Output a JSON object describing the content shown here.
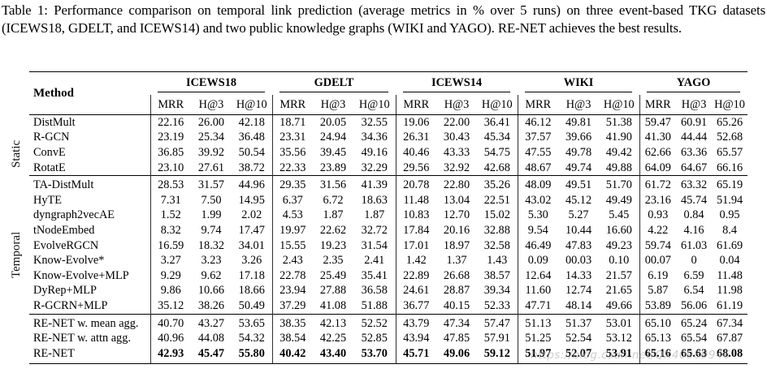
{
  "caption": "Table 1: Performance comparison on temporal link prediction (average metrics in % over 5 runs) on three event-based TKG datasets (ICEWS18, GDELT, and ICEWS14) and two public knowledge graphs (WIKI and YAGO). RE-NET achieves the best results.",
  "watermark": "https://blog.csdn.net/QX40989946",
  "table": {
    "method_header": "Method",
    "groups": [
      "ICEWS18",
      "GDELT",
      "ICEWS14",
      "WIKI",
      "YAGO"
    ],
    "metrics": [
      "MRR",
      "H@3",
      "H@10"
    ],
    "row_groups": [
      {
        "label": "Static",
        "rows": [
          {
            "method": "DistMult",
            "bold": false,
            "values": [
              "22.16",
              "26.00",
              "42.18",
              "18.71",
              "20.05",
              "32.55",
              "19.06",
              "22.00",
              "36.41",
              "46.12",
              "49.81",
              "51.38",
              "59.47",
              "60.91",
              "65.26"
            ]
          },
          {
            "method": "R-GCN",
            "bold": false,
            "values": [
              "23.19",
              "25.34",
              "36.48",
              "23.31",
              "24.94",
              "34.36",
              "26.31",
              "30.43",
              "45.34",
              "37.57",
              "39.66",
              "41.90",
              "41.30",
              "44.44",
              "52.68"
            ]
          },
          {
            "method": "ConvE",
            "bold": false,
            "values": [
              "36.85",
              "39.92",
              "50.54",
              "35.56",
              "39.45",
              "49.16",
              "40.46",
              "43.33",
              "54.75",
              "47.55",
              "49.78",
              "49.42",
              "62.66",
              "63.36",
              "65.57"
            ]
          },
          {
            "method": "RotatE",
            "bold": false,
            "values": [
              "23.10",
              "27.61",
              "38.72",
              "22.33",
              "23.89",
              "32.29",
              "29.56",
              "32.92",
              "42.68",
              "48.67",
              "49.74",
              "49.88",
              "64.09",
              "64.67",
              "66.16"
            ]
          }
        ]
      },
      {
        "label": "Temporal",
        "rows": [
          {
            "method": "TA-DistMult",
            "bold": false,
            "values": [
              "28.53",
              "31.57",
              "44.96",
              "29.35",
              "31.56",
              "41.39",
              "20.78",
              "22.80",
              "35.26",
              "48.09",
              "49.51",
              "51.70",
              "61.72",
              "63.32",
              "65.19"
            ]
          },
          {
            "method": "HyTE",
            "bold": false,
            "values": [
              "7.31",
              "7.50",
              "14.95",
              "6.37",
              "6.72",
              "18.63",
              "11.48",
              "13.04",
              "22.51",
              "43.02",
              "45.12",
              "49.49",
              "23.16",
              "45.74",
              "51.94"
            ]
          },
          {
            "method": "dyngraph2vecAE",
            "bold": false,
            "values": [
              "1.52",
              "1.99",
              "2.02",
              "4.53",
              "1.87",
              "1.87",
              "10.83",
              "12.70",
              "15.02",
              "5.30",
              "5.27",
              "5.45",
              "0.93",
              "0.84",
              "0.95"
            ]
          },
          {
            "method": "tNodeEmbed",
            "bold": false,
            "values": [
              "8.32",
              "9.74",
              "17.47",
              "19.97",
              "22.62",
              "32.72",
              "17.84",
              "20.16",
              "32.88",
              "9.54",
              "10.44",
              "16.60",
              "4.22",
              "4.16",
              "8.4"
            ]
          },
          {
            "method": "EvolveRGCN",
            "bold": false,
            "values": [
              "16.59",
              "18.32",
              "34.01",
              "15.55",
              "19.23",
              "31.54",
              "17.01",
              "18.97",
              "32.58",
              "46.49",
              "47.83",
              "49.23",
              "59.74",
              "61.03",
              "61.69"
            ]
          },
          {
            "method": "Know-Evolve*",
            "bold": false,
            "values": [
              "3.27",
              "3.23",
              "3.26",
              "2.43",
              "2.35",
              "2.41",
              "1.42",
              "1.37",
              "1.43",
              "0.09",
              "00.03",
              "0.10",
              "00.07",
              "0",
              "0.04"
            ]
          },
          {
            "method": "Know-Evolve+MLP",
            "bold": false,
            "values": [
              "9.29",
              "9.62",
              "17.18",
              "22.78",
              "25.49",
              "35.41",
              "22.89",
              "26.68",
              "38.57",
              "12.64",
              "14.33",
              "21.57",
              "6.19",
              "6.59",
              "11.48"
            ]
          },
          {
            "method": "DyRep+MLP",
            "bold": false,
            "values": [
              "9.86",
              "10.66",
              "18.66",
              "23.94",
              "27.88",
              "36.58",
              "24.61",
              "28.87",
              "39.34",
              "11.60",
              "12.74",
              "21.65",
              "5.87",
              "6.54",
              "11.98"
            ]
          },
          {
            "method": "R-GCRN+MLP",
            "bold": false,
            "values": [
              "35.12",
              "38.26",
              "50.49",
              "37.29",
              "41.08",
              "51.88",
              "36.77",
              "40.15",
              "52.33",
              "47.71",
              "48.14",
              "49.66",
              "53.89",
              "56.06",
              "61.19"
            ]
          }
        ]
      },
      {
        "label": "",
        "rows": [
          {
            "method": "RE-NET w. mean agg.",
            "bold": false,
            "values": [
              "40.70",
              "43.27",
              "53.65",
              "38.35",
              "42.13",
              "52.52",
              "43.79",
              "47.34",
              "57.47",
              "51.13",
              "51.37",
              "53.01",
              "65.10",
              "65.24",
              "67.34"
            ]
          },
          {
            "method": "RE-NET w. attn agg.",
            "bold": false,
            "values": [
              "40.96",
              "44.08",
              "54.32",
              "38.54",
              "42.25",
              "52.85",
              "43.94",
              "47.85",
              "57.91",
              "51.25",
              "52.54",
              "53.12",
              "65.13",
              "65.54",
              "67.87"
            ]
          },
          {
            "method": "RE-NET",
            "bold": true,
            "values": [
              "42.93",
              "45.47",
              "55.80",
              "40.42",
              "43.40",
              "53.70",
              "45.71",
              "49.06",
              "59.12",
              "51.97",
              "52.07",
              "53.91",
              "65.16",
              "65.63",
              "68.08"
            ]
          }
        ]
      }
    ]
  }
}
